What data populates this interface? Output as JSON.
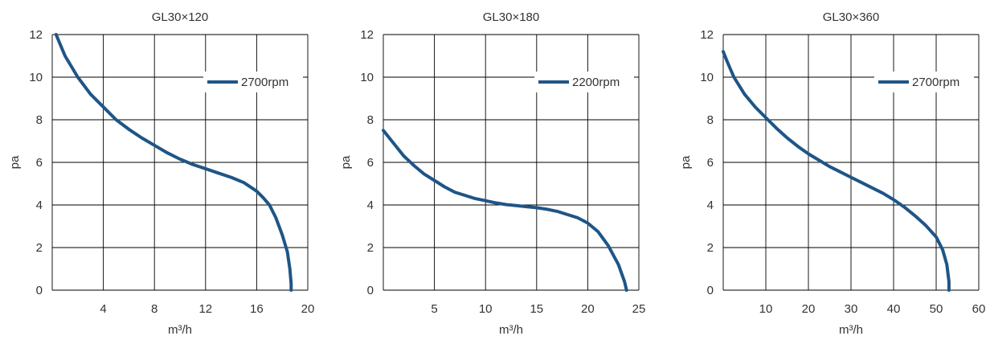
{
  "colors": {
    "curve": "#1f5587",
    "grid": "#000000",
    "text": "#333333"
  },
  "chart_data": [
    {
      "type": "line",
      "title": "GL30×120",
      "xlabel": "m³/h",
      "ylabel": "pa",
      "xlim": [
        0,
        20
      ],
      "ylim": [
        0,
        12
      ],
      "x_ticks": [
        4,
        8,
        12,
        16,
        20
      ],
      "y_ticks": [
        0,
        2,
        4,
        6,
        8,
        10,
        12
      ],
      "x_tick_labels": [
        "4",
        "8",
        "12",
        "16",
        "20"
      ],
      "y_tick_labels": [
        "0",
        "2",
        "4",
        "6",
        "8",
        "10",
        "12"
      ],
      "legend_position": "top-right",
      "series": [
        {
          "name": "2700rpm",
          "points": [
            [
              0.3,
              12.0
            ],
            [
              1,
              11.0
            ],
            [
              2,
              10.0
            ],
            [
              3,
              9.2
            ],
            [
              4,
              8.6
            ],
            [
              5,
              8.0
            ],
            [
              6,
              7.55
            ],
            [
              7,
              7.15
            ],
            [
              8,
              6.8
            ],
            [
              9,
              6.45
            ],
            [
              10,
              6.15
            ],
            [
              11,
              5.9
            ],
            [
              12,
              5.7
            ],
            [
              13,
              5.5
            ],
            [
              14,
              5.3
            ],
            [
              15,
              5.05
            ],
            [
              16,
              4.65
            ],
            [
              16.5,
              4.35
            ],
            [
              17,
              4.0
            ],
            [
              17.5,
              3.4
            ],
            [
              18,
              2.6
            ],
            [
              18.4,
              1.8
            ],
            [
              18.6,
              1.0
            ],
            [
              18.7,
              0.3
            ],
            [
              18.7,
              0.0
            ]
          ]
        }
      ]
    },
    {
      "type": "line",
      "title": "GL30×180",
      "xlabel": "m³/h",
      "ylabel": "pa",
      "xlim": [
        0,
        25
      ],
      "ylim": [
        0,
        12
      ],
      "x_ticks": [
        5,
        10,
        15,
        20,
        25
      ],
      "y_ticks": [
        0,
        2,
        4,
        6,
        8,
        10,
        12
      ],
      "x_tick_labels": [
        "5",
        "10",
        "15",
        "20",
        "25"
      ],
      "y_tick_labels": [
        "0",
        "2",
        "4",
        "6",
        "8",
        "10",
        "12"
      ],
      "legend_position": "top-right",
      "series": [
        {
          "name": "2200rpm",
          "points": [
            [
              0,
              7.5
            ],
            [
              1,
              6.9
            ],
            [
              2,
              6.3
            ],
            [
              3,
              5.85
            ],
            [
              4,
              5.45
            ],
            [
              5,
              5.15
            ],
            [
              6,
              4.85
            ],
            [
              7,
              4.6
            ],
            [
              8,
              4.45
            ],
            [
              9,
              4.3
            ],
            [
              10,
              4.2
            ],
            [
              11,
              4.1
            ],
            [
              12,
              4.02
            ],
            [
              13,
              3.97
            ],
            [
              14,
              3.92
            ],
            [
              15,
              3.87
            ],
            [
              16,
              3.8
            ],
            [
              17,
              3.7
            ],
            [
              18,
              3.55
            ],
            [
              19,
              3.4
            ],
            [
              20,
              3.15
            ],
            [
              21,
              2.75
            ],
            [
              22,
              2.1
            ],
            [
              23,
              1.2
            ],
            [
              23.6,
              0.4
            ],
            [
              23.8,
              0.0
            ]
          ]
        }
      ]
    },
    {
      "type": "line",
      "title": "GL30×360",
      "xlabel": "m³/h",
      "ylabel": "pa",
      "xlim": [
        0,
        60
      ],
      "ylim": [
        0,
        12
      ],
      "x_ticks": [
        10,
        20,
        30,
        40,
        50,
        60
      ],
      "y_ticks": [
        0,
        2,
        4,
        6,
        8,
        10,
        12
      ],
      "x_tick_labels": [
        "10",
        "20",
        "30",
        "40",
        "50",
        "60"
      ],
      "y_tick_labels": [
        "0",
        "2",
        "4",
        "6",
        "8",
        "10",
        "12"
      ],
      "legend_position": "top-right",
      "series": [
        {
          "name": "2700rpm",
          "points": [
            [
              0,
              11.2
            ],
            [
              1,
              10.7
            ],
            [
              2.5,
              10.0
            ],
            [
              5,
              9.2
            ],
            [
              7.5,
              8.6
            ],
            [
              10,
              8.1
            ],
            [
              12.5,
              7.6
            ],
            [
              15,
              7.15
            ],
            [
              17.5,
              6.75
            ],
            [
              20,
              6.4
            ],
            [
              22.5,
              6.1
            ],
            [
              25,
              5.8
            ],
            [
              27.5,
              5.55
            ],
            [
              30,
              5.3
            ],
            [
              32.5,
              5.05
            ],
            [
              35,
              4.8
            ],
            [
              37.5,
              4.55
            ],
            [
              40,
              4.25
            ],
            [
              42.5,
              3.9
            ],
            [
              45,
              3.5
            ],
            [
              47.5,
              3.05
            ],
            [
              50,
              2.5
            ],
            [
              51.5,
              1.9
            ],
            [
              52.5,
              1.2
            ],
            [
              53,
              0.4
            ],
            [
              53,
              0.0
            ]
          ]
        }
      ]
    }
  ]
}
